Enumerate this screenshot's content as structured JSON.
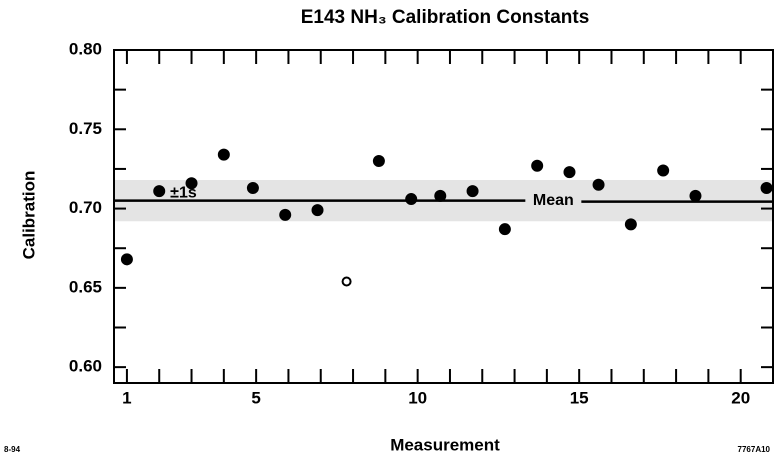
{
  "chart_data": {
    "type": "scatter",
    "title": "E143 NH₃ Calibration Constants",
    "xlabel": "Measurement",
    "ylabel": "Calibration",
    "x": [
      1,
      2,
      3,
      4,
      4.9,
      5.9,
      6.9,
      7.8,
      8.8,
      9.8,
      10.7,
      11.7,
      12.7,
      13.7,
      14.7,
      15.6,
      16.6,
      17.6,
      18.6,
      20.8
    ],
    "series": [
      {
        "color": "#000000",
        "values": [
          0.668,
          0.711,
          0.716,
          0.734,
          0.713,
          0.696,
          0.699,
          0.654,
          0.73,
          0.706,
          0.708,
          0.711,
          0.687,
          0.727,
          0.723,
          0.715,
          0.69,
          0.724,
          0.708,
          0.713
        ],
        "open": [
          false,
          false,
          false,
          false,
          false,
          false,
          false,
          true,
          false,
          false,
          false,
          false,
          false,
          false,
          false,
          false,
          false,
          false,
          false,
          false
        ]
      }
    ],
    "mean": 0.705,
    "mean_label": "Mean",
    "band": [
      0.692,
      0.718
    ],
    "band_label": "±1s",
    "xlim": [
      0.6,
      21
    ],
    "ylim": [
      0.59,
      0.8
    ],
    "xticks": [
      1,
      5,
      10,
      15,
      20
    ],
    "xminor": [
      1,
      2,
      3,
      4,
      5,
      6,
      7,
      8,
      9,
      10,
      11,
      12,
      13,
      14,
      15,
      16,
      17,
      18,
      19,
      20,
      21
    ],
    "yticks": [
      {
        "value": 0.6,
        "label": "0.60"
      },
      0.65,
      {
        "value": 0.7,
        "label": "0.70"
      },
      0.75,
      {
        "value": 0.8,
        "label": "0.80"
      }
    ],
    "yminor": [
      0.6,
      0.625,
      0.65,
      0.675,
      0.7,
      0.725,
      0.75,
      0.775,
      0.8
    ],
    "footnote_left": "8-94",
    "footnote_right": "7767A10"
  }
}
